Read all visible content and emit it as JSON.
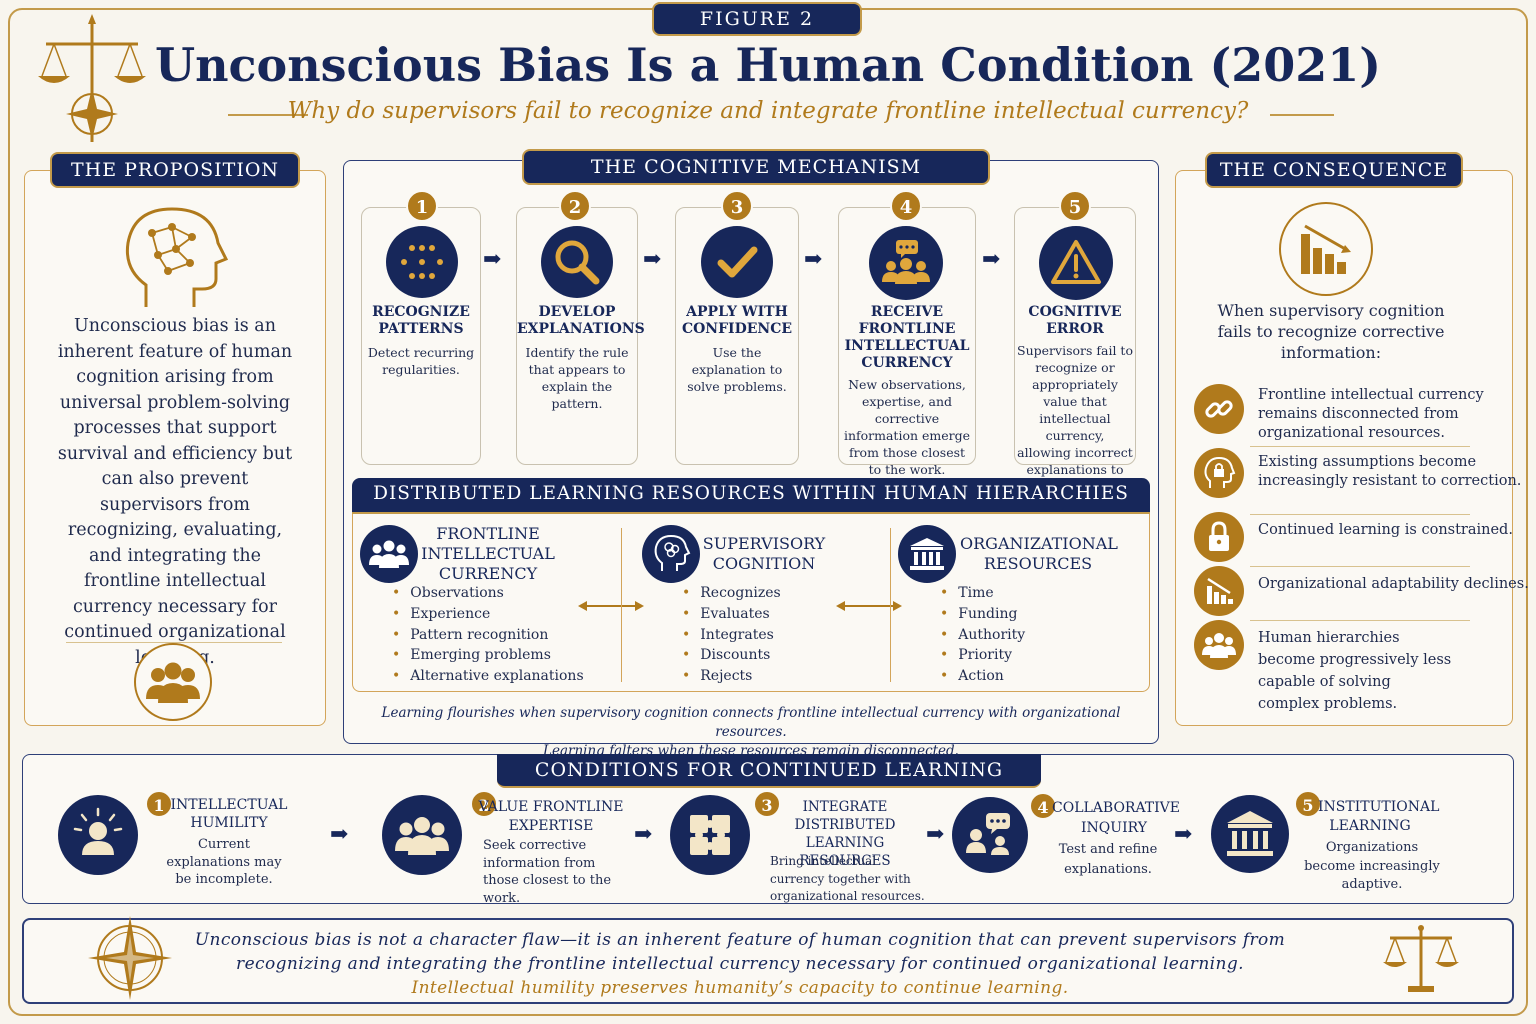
{
  "figure_label": "FIGURE 2",
  "title": "Unconscious Bias Is a Human Condition (2021)",
  "subtitle": "Why do supervisors fail to recognize and integrate frontline intellectual currency?",
  "colors": {
    "navy": "#17275a",
    "gold": "#b07a1c",
    "background": "#f8f5ee"
  },
  "proposition": {
    "header": "THE PROPOSITION",
    "icon": "head-network-icon",
    "text": "Unconscious bias is an inherent feature of human cognition arising from universal problem-solving processes that support survival and efficiency but can also prevent supervisors from recognizing, evaluating, and integrating the frontline intellectual currency necessary for continued organizational learning.",
    "bottom_icon": "people-group-icon"
  },
  "mechanism": {
    "header": "THE COGNITIVE MECHANISM",
    "steps": [
      {
        "num": "1",
        "title": "RECOGNIZE PATTERNS",
        "desc": "Detect recurring regularities.",
        "icon": "dots-grid-icon"
      },
      {
        "num": "2",
        "title": "DEVELOP EXPLANATIONS",
        "desc": "Identify the rule that appears to explain the pattern.",
        "icon": "magnifier-icon"
      },
      {
        "num": "3",
        "title": "APPLY WITH CONFIDENCE",
        "desc": "Use the explanation to solve problems.",
        "icon": "checkmark-icon"
      },
      {
        "num": "4",
        "title": "RECEIVE FRONTLINE INTELLECTUAL CURRENCY",
        "desc": "New observations, expertise, and corrective information emerge from those closest to the work.",
        "icon": "people-chat-icon"
      },
      {
        "num": "5",
        "title": "COGNITIVE ERROR",
        "desc": "Supervisors fail to recognize or appropriately value that intellectual currency, allowing incorrect explanations to persist.",
        "icon": "warning-icon"
      }
    ]
  },
  "distributed": {
    "header": "DISTRIBUTED LEARNING RESOURCES WITHIN HUMAN HIERARCHIES",
    "columns": [
      {
        "title": "FRONTLINE INTELLECTUAL CURRENCY",
        "icon": "people-icon",
        "items": [
          "Observations",
          "Experience",
          "Pattern recognition",
          "Emerging problems",
          "Alternative explanations"
        ]
      },
      {
        "title": "SUPERVISORY COGNITION",
        "icon": "brain-head-icon",
        "items": [
          "Recognizes",
          "Evaluates",
          "Integrates",
          "Discounts",
          "Rejects"
        ]
      },
      {
        "title": "ORGANIZATIONAL RESOURCES",
        "icon": "institution-icon",
        "items": [
          "Time",
          "Funding",
          "Authority",
          "Priority",
          "Action"
        ]
      }
    ],
    "footnote_1": "Learning flourishes when supervisory cognition connects frontline intellectual currency with organizational resources.",
    "footnote_2": "Learning falters when these resources remain disconnected."
  },
  "consequence": {
    "header": "THE CONSEQUENCE",
    "icon": "declining-chart-icon",
    "intro": "When supervisory cognition fails to recognize corrective information:",
    "items": [
      {
        "text": "Frontline intellectual currency remains disconnected from organizational resources.",
        "icon": "broken-link-icon"
      },
      {
        "text": "Existing assumptions become increasingly resistant to correction.",
        "icon": "locked-head-icon"
      },
      {
        "text": "Continued learning is constrained.",
        "icon": "padlock-icon"
      },
      {
        "text": "Organizational adaptability declines.",
        "icon": "decline-bars-icon"
      },
      {
        "text": "Human hierarchies become progressively less capable of solving complex problems.",
        "icon": "people-icon"
      }
    ]
  },
  "conditions": {
    "header": "CONDITIONS FOR CONTINUED LEARNING",
    "items": [
      {
        "num": "1",
        "title": "INTELLECTUAL HUMILITY",
        "desc": "Current explanations may be incomplete.",
        "icon": "enlightened-person-icon"
      },
      {
        "num": "2",
        "title": "VALUE FRONTLINE EXPERTISE",
        "desc": "Seek corrective information from those closest to the work.",
        "icon": "people-icon"
      },
      {
        "num": "3",
        "title": "INTEGRATE DISTRIBUTED LEARNING RESOURCES",
        "desc": "Bring intellectual currency together with organizational resources.",
        "icon": "puzzle-icon"
      },
      {
        "num": "4",
        "title": "COLLABORATIVE INQUIRY",
        "desc": "Test and refine explanations.",
        "icon": "people-chat-icon"
      },
      {
        "num": "5",
        "title": "INSTITUTIONAL LEARNING",
        "desc": "Organizations become increasingly adaptive.",
        "icon": "institution-icon"
      }
    ]
  },
  "closing": {
    "line_1": "Unconscious bias is not a character flaw—it is an inherent feature of human cognition that can prevent supervisors from",
    "line_2": "recognizing and integrating the frontline intellectual currency necessary for continued organizational learning.",
    "line_3": "Intellectual humility preserves humanity’s capacity to continue learning.",
    "left_icon": "compass-star-icon",
    "right_icon": "scales-icon"
  },
  "header_icon": "scales-compass-icon"
}
